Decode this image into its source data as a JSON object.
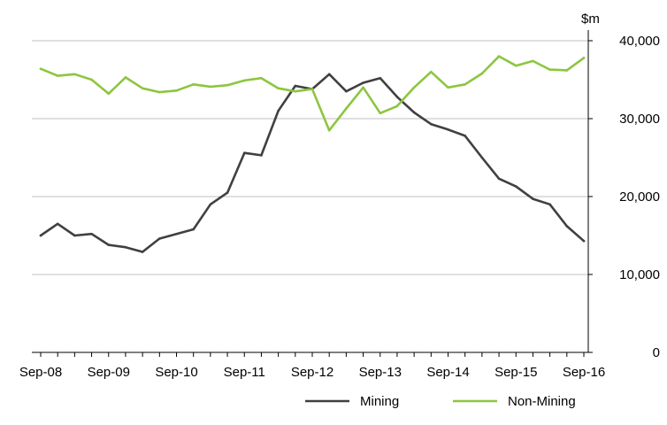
{
  "chart_data": {
    "type": "line",
    "title": "",
    "xlabel": "",
    "ylabel": "$m",
    "ylim": [
      0,
      40000
    ],
    "yticks": [
      {
        "value": 0,
        "label": "0"
      },
      {
        "value": 10000,
        "label": "10,000"
      },
      {
        "value": 20000,
        "label": "20,000"
      },
      {
        "value": 30000,
        "label": "30,000"
      },
      {
        "value": 40000,
        "label": "40,000"
      }
    ],
    "xticks": [
      "Sep-08",
      "Sep-09",
      "Sep-10",
      "Sep-11",
      "Sep-12",
      "Sep-13",
      "Sep-14",
      "Sep-15",
      "Sep-16"
    ],
    "x": [
      "Sep-08",
      "Dec-08",
      "Mar-09",
      "Jun-09",
      "Sep-09",
      "Dec-09",
      "Mar-10",
      "Jun-10",
      "Sep-10",
      "Dec-10",
      "Mar-11",
      "Jun-11",
      "Sep-11",
      "Dec-11",
      "Mar-12",
      "Jun-12",
      "Sep-12",
      "Dec-12",
      "Mar-13",
      "Jun-13",
      "Sep-13",
      "Dec-13",
      "Mar-14",
      "Jun-14",
      "Sep-14",
      "Dec-14",
      "Mar-15",
      "Jun-15",
      "Sep-15",
      "Dec-15",
      "Mar-16",
      "Jun-16",
      "Sep-16"
    ],
    "grid": true,
    "legend_position": "bottom-right",
    "y_axis_side": "right",
    "series": [
      {
        "name": "Mining",
        "color": "#404040",
        "values": [
          15000,
          16500,
          15000,
          15200,
          13800,
          13500,
          12900,
          14600,
          15200,
          15800,
          19000,
          20500,
          25600,
          25300,
          31000,
          34200,
          33800,
          35700,
          33500,
          34600,
          35200,
          32800,
          30800,
          29300,
          28600,
          27800,
          25000,
          22300,
          21300,
          19700,
          19000,
          16200,
          14300
        ]
      },
      {
        "name": "Non-Mining",
        "color": "#8cc63f",
        "values": [
          36400,
          35500,
          35700,
          35000,
          33200,
          35300,
          33900,
          33400,
          33600,
          34400,
          34100,
          34300,
          34900,
          35200,
          33900,
          33500,
          33800,
          28500,
          31300,
          34000,
          30700,
          31600,
          34000,
          36000,
          34000,
          34400,
          35800,
          38000,
          36800,
          37400,
          36300,
          36200,
          37800
        ]
      }
    ]
  }
}
